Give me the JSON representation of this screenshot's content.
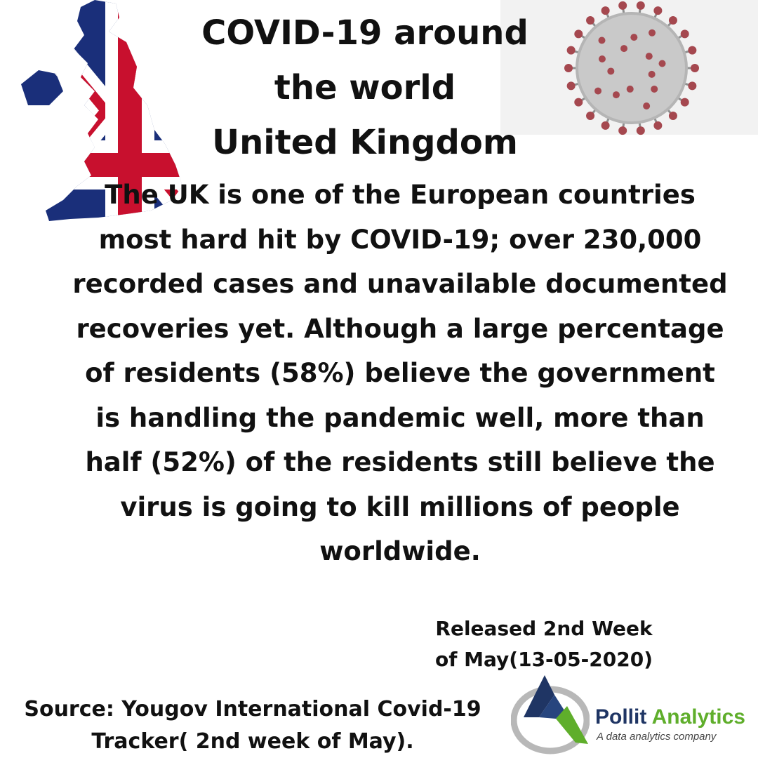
{
  "header": {
    "title_lines": [
      "COVID-19 around",
      "the world",
      "United Kingdom"
    ]
  },
  "body": {
    "paragraph": "The UK is one of the European countries most hard hit by COVID-19; over 230,000 recorded cases and unavailable documented recoveries yet. Although a large percentage of residents (58%) believe the government is handling the pandemic well, more than half (52%) of the residents still believe the virus is going to kill millions of people worldwide."
  },
  "release": {
    "lines": [
      "Released 2nd Week",
      "of May(13-05-2020)"
    ]
  },
  "source": {
    "lines": [
      "Source: Yougov International Covid-19",
      "Tracker( 2nd week of May)."
    ]
  },
  "logo": {
    "name_part1": "Pollit",
    "name_part2": "Analytics",
    "tagline": "A data analytics company"
  },
  "images": {
    "left": "uk-flag-map",
    "right": "coronavirus-illustration"
  },
  "colors": {
    "flag_blue": "#1a2f7a",
    "flag_red": "#c8102e",
    "virus_red": "#a5484f",
    "logo_navy": "#1f3564",
    "logo_green": "#5fae2b"
  }
}
